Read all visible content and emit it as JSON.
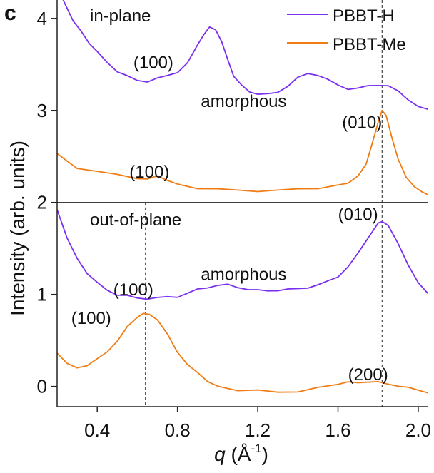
{
  "panel_label": "c",
  "chart_data": {
    "type": "line",
    "xlabel": "q (Å⁻¹)",
    "xlabel_parts": {
      "symbol": "q",
      "unit_open": " (Å",
      "exponent": "-1",
      "unit_close": ")"
    },
    "ylabel": "Intensity (arb. units)",
    "xlim": [
      0.2,
      2.05
    ],
    "ylim": [
      -0.22,
      4.2
    ],
    "x_ticks": [
      0.4,
      0.8,
      1.2,
      1.6,
      2.0
    ],
    "x_tick_labels": [
      "0.4",
      "0.8",
      "1.2",
      "1.6",
      "2.0"
    ],
    "y_ticks": [
      0,
      1,
      2,
      3,
      4
    ],
    "y_tick_labels": [
      "0",
      "1",
      "2",
      "3",
      "4"
    ],
    "panel_divider_y": 2.0,
    "legend": {
      "placement": "top-right",
      "entries": [
        "PBBT-H",
        "PBBT-Me"
      ]
    },
    "colors": {
      "PBBT-H": "#7b2ff0",
      "PBBT-Me": "#f07c14",
      "axis": "#222222",
      "ref_line": "#555555"
    },
    "reference_lines_x": [
      {
        "x": 1.82,
        "from_y": -0.22,
        "to_y": 4.2
      },
      {
        "x": 0.64,
        "from_y": -0.22,
        "to_y": 2.0
      }
    ],
    "panels": [
      {
        "name": "in-plane",
        "label": "in-plane",
        "series": [
          {
            "name": "PBBT-H",
            "x": [
              0.2,
              0.24,
              0.28,
              0.32,
              0.36,
              0.4,
              0.45,
              0.5,
              0.55,
              0.6,
              0.65,
              0.7,
              0.75,
              0.8,
              0.85,
              0.9,
              0.93,
              0.96,
              0.99,
              1.02,
              1.05,
              1.08,
              1.12,
              1.16,
              1.2,
              1.25,
              1.3,
              1.35,
              1.4,
              1.45,
              1.5,
              1.55,
              1.6,
              1.65,
              1.7,
              1.75,
              1.8,
              1.85,
              1.9,
              1.95,
              2.0,
              2.05
            ],
            "y": [
              4.35,
              4.15,
              3.98,
              3.85,
              3.74,
              3.63,
              3.52,
              3.43,
              3.37,
              3.32,
              3.32,
              3.35,
              3.37,
              3.42,
              3.52,
              3.7,
              3.83,
              3.9,
              3.88,
              3.75,
              3.55,
              3.38,
              3.27,
              3.2,
              3.18,
              3.17,
              3.2,
              3.27,
              3.35,
              3.4,
              3.39,
              3.33,
              3.27,
              3.24,
              3.24,
              3.26,
              3.28,
              3.27,
              3.2,
              3.12,
              3.05,
              3.0
            ]
          },
          {
            "name": "PBBT-Me",
            "x": [
              0.2,
              0.3,
              0.4,
              0.5,
              0.6,
              0.65,
              0.7,
              0.75,
              0.8,
              0.9,
              1.0,
              1.1,
              1.2,
              1.3,
              1.4,
              1.5,
              1.6,
              1.65,
              1.7,
              1.74,
              1.77,
              1.8,
              1.82,
              1.84,
              1.87,
              1.9,
              1.94,
              1.98,
              2.02,
              2.05
            ],
            "y": [
              2.53,
              2.38,
              2.33,
              2.3,
              2.27,
              2.25,
              2.28,
              2.25,
              2.2,
              2.16,
              2.14,
              2.13,
              2.13,
              2.13,
              2.14,
              2.16,
              2.19,
              2.22,
              2.28,
              2.42,
              2.63,
              2.88,
              2.99,
              2.94,
              2.7,
              2.46,
              2.28,
              2.17,
              2.11,
              2.08
            ]
          }
        ]
      },
      {
        "name": "out-of-plane",
        "label": "out-of-plane",
        "series": [
          {
            "name": "PBBT-H",
            "x": [
              0.2,
              0.25,
              0.3,
              0.35,
              0.4,
              0.45,
              0.5,
              0.55,
              0.6,
              0.65,
              0.7,
              0.75,
              0.8,
              0.85,
              0.9,
              0.95,
              1.0,
              1.05,
              1.1,
              1.15,
              1.2,
              1.25,
              1.3,
              1.35,
              1.4,
              1.45,
              1.5,
              1.55,
              1.6,
              1.65,
              1.7,
              1.75,
              1.8,
              1.82,
              1.85,
              1.9,
              1.95,
              2.0,
              2.05
            ],
            "y": [
              1.92,
              1.6,
              1.4,
              1.23,
              1.12,
              1.05,
              1.0,
              0.98,
              0.96,
              0.96,
              0.96,
              0.97,
              0.98,
              1.01,
              1.05,
              1.08,
              1.1,
              1.1,
              1.08,
              1.06,
              1.04,
              1.04,
              1.05,
              1.05,
              1.06,
              1.08,
              1.1,
              1.14,
              1.2,
              1.3,
              1.44,
              1.62,
              1.78,
              1.8,
              1.74,
              1.55,
              1.33,
              1.12,
              1.0
            ]
          },
          {
            "name": "PBBT-Me",
            "x": [
              0.2,
              0.25,
              0.3,
              0.35,
              0.4,
              0.45,
              0.5,
              0.55,
              0.6,
              0.63,
              0.66,
              0.7,
              0.75,
              0.8,
              0.85,
              0.9,
              0.95,
              1.0,
              1.1,
              1.2,
              1.3,
              1.4,
              1.5,
              1.6,
              1.65,
              1.7,
              1.75,
              1.8,
              1.85,
              1.9,
              1.95,
              2.0,
              2.05
            ],
            "y": [
              0.36,
              0.24,
              0.21,
              0.23,
              0.29,
              0.38,
              0.5,
              0.64,
              0.75,
              0.79,
              0.79,
              0.72,
              0.56,
              0.38,
              0.24,
              0.14,
              0.06,
              0.01,
              -0.04,
              -0.05,
              -0.06,
              -0.05,
              -0.02,
              0.02,
              0.04,
              0.05,
              0.05,
              0.04,
              0.03,
              0.01,
              -0.02,
              -0.04,
              -0.06
            ]
          }
        ]
      }
    ],
    "annotations": [
      {
        "text": "(100)",
        "x": 0.68,
        "y": 3.52
      },
      {
        "text": "amorphous",
        "x": 1.13,
        "y": 3.1
      },
      {
        "text": "(010)",
        "x": 1.72,
        "y": 2.87
      },
      {
        "text": "(100)",
        "x": 0.66,
        "y": 2.33
      },
      {
        "text": "(010)",
        "x": 1.7,
        "y": 1.87
      },
      {
        "text": "amorphous",
        "x": 1.13,
        "y": 1.22
      },
      {
        "text": "(100)",
        "x": 0.58,
        "y": 1.05
      },
      {
        "text": "(100)",
        "x": 0.37,
        "y": 0.74
      },
      {
        "text": "(200)",
        "x": 1.75,
        "y": 0.13
      }
    ]
  }
}
